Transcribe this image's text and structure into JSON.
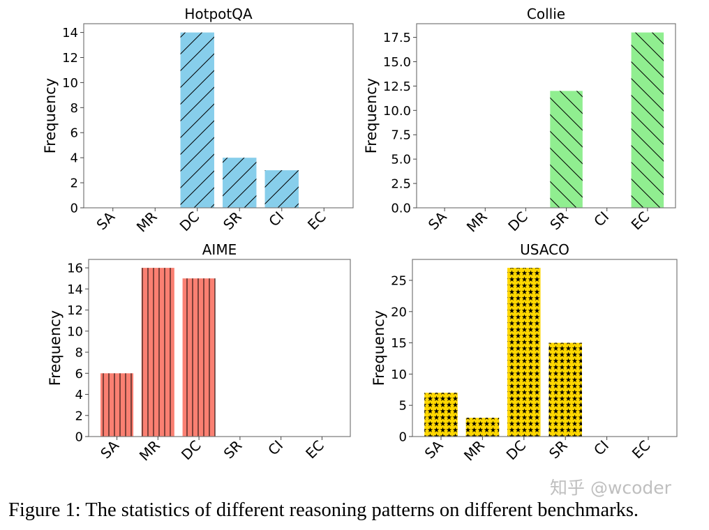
{
  "chart_data": [
    {
      "type": "bar",
      "title": "HotpotQA",
      "ylabel": "Frequency",
      "xlabel": "",
      "categories": [
        "SA",
        "MR",
        "DC",
        "SR",
        "CI",
        "EC"
      ],
      "values": [
        0,
        0,
        14,
        4,
        3,
        0
      ],
      "ylim": [
        0,
        14.7
      ],
      "yticks": [
        "0",
        "2",
        "4",
        "6",
        "8",
        "10",
        "12",
        "14"
      ],
      "color": "#87CEEB",
      "hatch": "/",
      "grid": false
    },
    {
      "type": "bar",
      "title": "Collie",
      "ylabel": "Frequency",
      "xlabel": "",
      "categories": [
        "SA",
        "MR",
        "DC",
        "SR",
        "CI",
        "EC"
      ],
      "values": [
        0,
        0,
        0,
        12,
        0,
        18
      ],
      "ylim": [
        0,
        18.9
      ],
      "yticks": [
        "0.0",
        "2.5",
        "5.0",
        "7.5",
        "10.0",
        "12.5",
        "15.0",
        "17.5"
      ],
      "color": "#90EE90",
      "hatch": "\\",
      "grid": false
    },
    {
      "type": "bar",
      "title": "AIME",
      "ylabel": "Frequency",
      "xlabel": "",
      "categories": [
        "SA",
        "MR",
        "DC",
        "SR",
        "CI",
        "EC"
      ],
      "values": [
        6,
        16,
        15,
        0,
        0,
        0
      ],
      "ylim": [
        0,
        16.8
      ],
      "yticks": [
        "0",
        "2",
        "4",
        "6",
        "8",
        "10",
        "12",
        "14",
        "16"
      ],
      "color": "#FA8072",
      "hatch": "|",
      "grid": false
    },
    {
      "type": "bar",
      "title": "USACO",
      "ylabel": "Frequency",
      "xlabel": "",
      "categories": [
        "SA",
        "MR",
        "DC",
        "SR",
        "CI",
        "EC"
      ],
      "values": [
        7,
        3,
        27,
        15,
        0,
        0
      ],
      "ylim": [
        0,
        28.35
      ],
      "yticks": [
        "0",
        "5",
        "10",
        "15",
        "20",
        "25"
      ],
      "color": "#FFD700",
      "hatch": "*",
      "grid": false
    }
  ],
  "caption": "Figure 1: The statistics of different reasoning patterns on different benchmarks.",
  "watermark": "知乎 @wcoder"
}
